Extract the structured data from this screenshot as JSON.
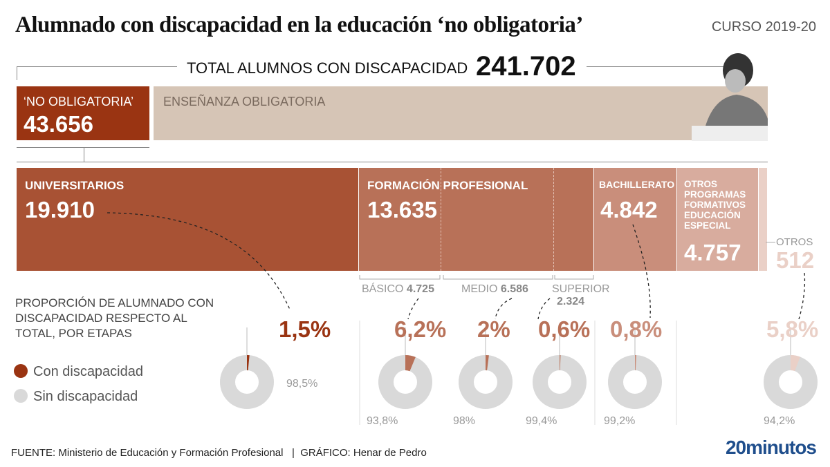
{
  "header": {
    "title": "Alumnado con discapacidad en la educación ‘no obligatoria’",
    "course": "CURSO 2019-20"
  },
  "total": {
    "label": "TOTAL ALUMNOS CON DISCAPACIDAD",
    "value": "241.702"
  },
  "split": {
    "no_obligatoria": {
      "label": "‘NO OBLIGATORIA’",
      "value": "43.656"
    },
    "obligatoria": {
      "label": "ENSEÑANZA OBLIGATORIA"
    }
  },
  "colors": {
    "no_obligatoria": "#9a3412",
    "obligatoria": "#d6c5b6",
    "universitarios": "#a85234",
    "fp": "#b87158",
    "bachillerato": "#c98e7b",
    "otros_programas": "#d8ac9e",
    "otros": "#ead0c7",
    "sin": "#d9d9d9"
  },
  "stages": {
    "universitarios": {
      "label": "UNIVERSITARIOS",
      "value": "19.910"
    },
    "fp": {
      "label": "FORMACIÓN PROFESIONAL",
      "value": "13.635",
      "basico_label": "BÁSICO",
      "basico": "4.725",
      "medio_label": "MEDIO",
      "medio": "6.586",
      "superior_label": "SUPERIOR",
      "superior": "2.324"
    },
    "bachillerato": {
      "label": "BACHILLERATO",
      "value": "4.842"
    },
    "otros_programas": {
      "label": "OTROS PROGRAMAS FORMATIVOS EDUCACIÓN ESPECIAL",
      "value": "4.757"
    },
    "otros": {
      "label": "OTROS",
      "value": "512"
    }
  },
  "proportion": {
    "title": "PROPORCIÓN DE ALUMNADO CON DISCAPACIDAD RESPECTO AL TOTAL, POR ETAPAS",
    "legend_con": "Con discapacidad",
    "legend_sin": "Sin discapacidad"
  },
  "chart_data": {
    "type": "pie",
    "subtype": "donut",
    "categories": [
      "Universitarios",
      "FP Básico",
      "FP Medio",
      "FP Superior",
      "Bachillerato",
      "Otros"
    ],
    "series": [
      {
        "name": "Con discapacidad",
        "values": [
          1.5,
          6.2,
          2,
          0.6,
          0.8,
          5.8
        ],
        "labels": [
          "1,5%",
          "6,2%",
          "2%",
          "0,6%",
          "0,8%",
          "5,8%"
        ]
      },
      {
        "name": "Sin discapacidad",
        "values": [
          98.5,
          93.8,
          98,
          99.4,
          99.2,
          94.2
        ],
        "labels": [
          "98,5%",
          "93,8%",
          "98%",
          "99,4%",
          "99,2%",
          "94,2%"
        ]
      }
    ],
    "colors": [
      "#9a3412",
      "#b87158",
      "#b87158",
      "#b87158",
      "#c98e7b",
      "#ead0c7"
    ]
  },
  "footer": {
    "source": "FUENTE: Ministerio de Educación y Formación Profesional   |  GRÁFICO: Henar de Pedro",
    "logo": "20minutos"
  }
}
